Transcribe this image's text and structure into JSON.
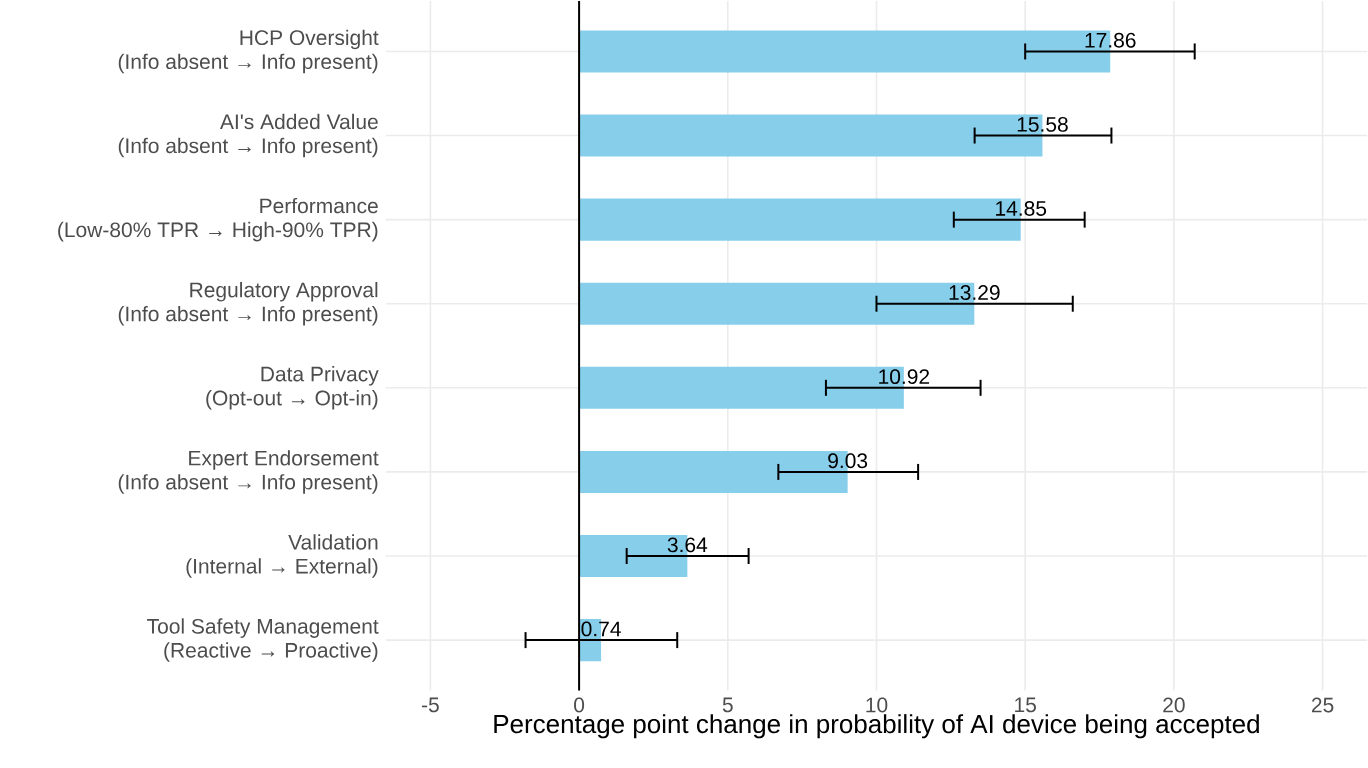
{
  "chart_data": {
    "type": "bar",
    "orientation": "horizontal",
    "xlabel": "Percentage point change in probability of AI device being accepted",
    "categories": [
      "HCP Oversight\n(Info absent → Info present)",
      "AI's Added Value\n(Info absent → Info present)",
      "Performance\n(Low-80% TPR → High-90% TPR)",
      "Regulatory Approval\n(Info absent → Info present)",
      "Data Privacy\n(Opt-out → Opt-in)",
      "Expert Endorsement\n(Info absent → Info present)",
      "Validation\n(Internal → External)",
      "Tool Safety Management\n(Reactive → Proactive)"
    ],
    "values": [
      17.86,
      15.58,
      14.85,
      13.29,
      10.92,
      9.03,
      3.64,
      0.74
    ],
    "errors": [
      [
        15.0,
        20.7
      ],
      [
        13.3,
        17.9
      ],
      [
        12.6,
        17.0
      ],
      [
        10.0,
        16.6
      ],
      [
        8.3,
        13.5
      ],
      [
        6.7,
        11.4
      ],
      [
        1.6,
        5.7
      ],
      [
        -1.8,
        3.3
      ]
    ],
    "color": "#87ceeb",
    "xlim": [
      -6.5,
      26.5
    ],
    "xticks": [
      -5,
      0,
      5,
      10,
      15,
      20,
      25
    ],
    "ref_lines": [
      {
        "axis": "x",
        "value": 0,
        "color": "#000000"
      }
    ],
    "data_labels": true,
    "grid": true
  }
}
